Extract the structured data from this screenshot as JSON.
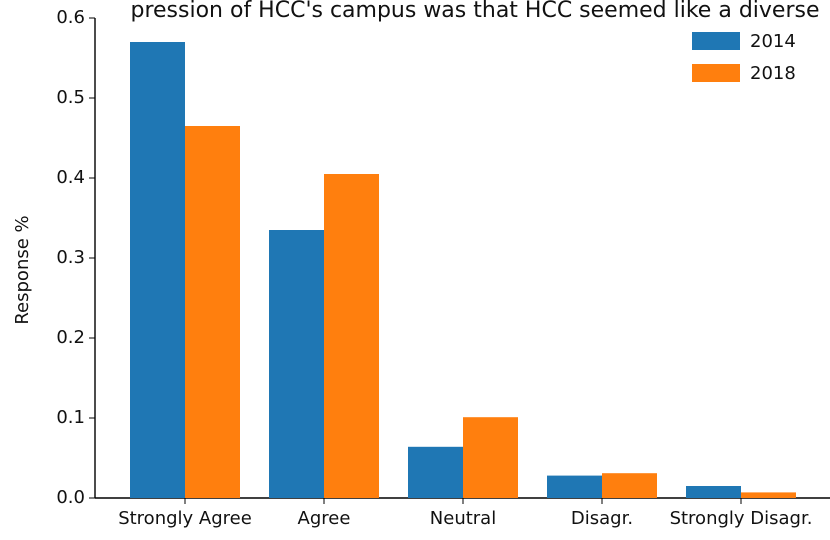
{
  "chart_data": {
    "type": "bar",
    "title": "pression of HCC's campus was that HCC seemed like a diverse",
    "xlabel": "",
    "ylabel": "Response %",
    "categories": [
      "Strongly Agree",
      "Agree",
      "Neutral",
      "Disagr.",
      "Strongly Disagr."
    ],
    "series": [
      {
        "name": "2014",
        "color": "#1f77b4",
        "values": [
          0.57,
          0.335,
          0.064,
          0.028,
          0.015
        ]
      },
      {
        "name": "2018",
        "color": "#ff7f0e",
        "values": [
          0.465,
          0.405,
          0.101,
          0.031,
          0.007
        ]
      }
    ],
    "ylim": [
      0,
      0.6
    ],
    "yticks": [
      "0.0",
      "0.1",
      "0.2",
      "0.3",
      "0.4",
      "0.5",
      "0.6"
    ],
    "grid": false,
    "legend_position": "top-right"
  }
}
